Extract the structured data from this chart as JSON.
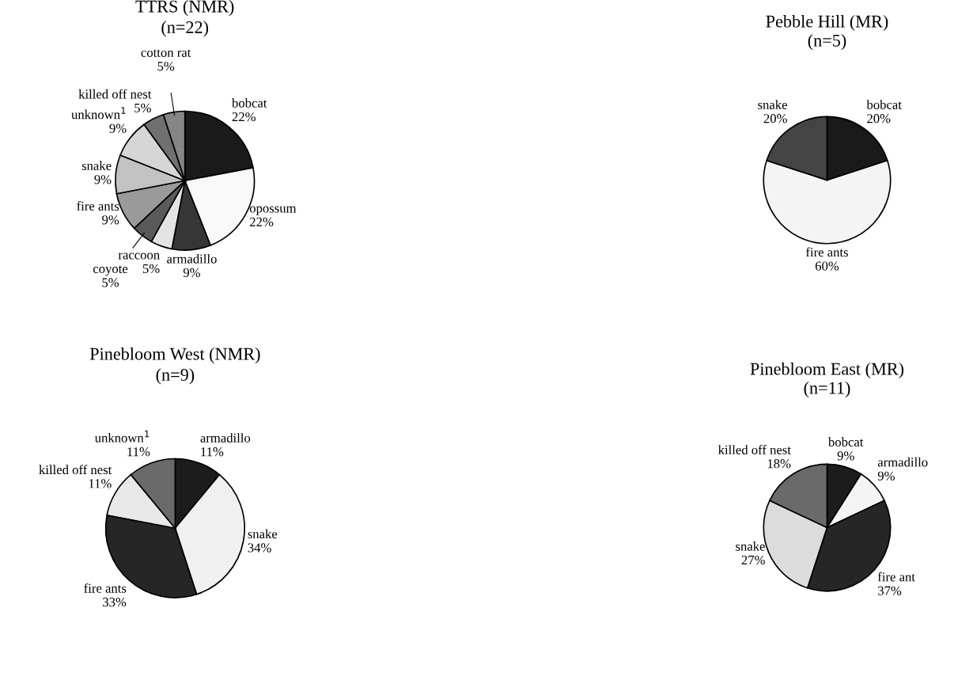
{
  "chart_data": [
    {
      "type": "pie",
      "title": "TTRS (NMR)",
      "subtitle": "(n=22)",
      "categories": [
        "bobcat",
        "opossum",
        "armadillo",
        "raccoon",
        "coyote",
        "fire ants",
        "snake",
        "unknown$^{1}$",
        "killed off nest",
        "cotton rat"
      ],
      "values": [
        22,
        22,
        9,
        5,
        5,
        9,
        9,
        9,
        5,
        5
      ],
      "value_labels": [
        "22%",
        "22%",
        "9%",
        "5%",
        "5%",
        "9%",
        "9%",
        "9%",
        "5%",
        "5%"
      ],
      "colors": [
        "#1a1a1a",
        "#f8f8f8",
        "#363636",
        "#e4e4e4",
        "#5a5a5a",
        "#9a9a9a",
        "#c2c2c2",
        "#d6d6d6",
        "#707070",
        "#868686"
      ],
      "legend": false
    },
    {
      "type": "pie",
      "title": "Pebble Hill (MR)",
      "subtitle": "(n=5)",
      "categories": [
        "bobcat",
        "fire ants",
        "snake"
      ],
      "values": [
        20,
        60,
        20
      ],
      "value_labels": [
        "20%",
        "60%",
        "20%"
      ],
      "colors": [
        "#1a1a1a",
        "#f4f4f4",
        "#444444"
      ],
      "legend": false
    },
    {
      "type": "pie",
      "title": "Pinebloom West (NMR)",
      "subtitle": "(n=9)",
      "categories": [
        "armadillo",
        "snake",
        "fire ants",
        "killed off nest",
        "unknown$^{1}$"
      ],
      "values": [
        11,
        34,
        33,
        11,
        11
      ],
      "value_labels": [
        "11%",
        "34%",
        "33%",
        "11%",
        "11%"
      ],
      "colors": [
        "#1c1c1c",
        "#f0f0f0",
        "#262626",
        "#e8e8e8",
        "#6a6a6a"
      ],
      "legend": false
    },
    {
      "type": "pie",
      "title": "Pinebloom East (MR)",
      "subtitle": "(n=11)",
      "categories": [
        "bobcat",
        "armadillo",
        "fire ant",
        "snake",
        "killed off nest"
      ],
      "values": [
        9,
        9,
        37,
        27,
        18
      ],
      "value_labels": [
        "9%",
        "9%",
        "37%",
        "27%",
        "18%"
      ],
      "colors": [
        "#1c1c1c",
        "#f4f4f4",
        "#262626",
        "#dcdcdc",
        "#6a6a6a"
      ],
      "legend": false
    }
  ]
}
